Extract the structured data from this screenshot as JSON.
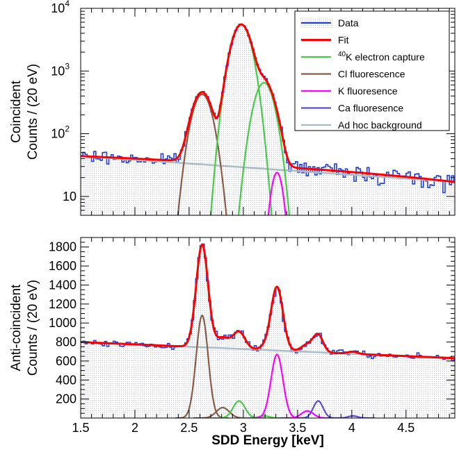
{
  "chart_data": [
    {
      "type": "line",
      "panel": "top",
      "ylabel_line1": "Coincident",
      "ylabel_line2": "Counts / (20 eV)",
      "ylog": true,
      "xlim": [
        1.5,
        4.95
      ],
      "ylim": [
        5,
        10000
      ],
      "yticks": [
        {
          "value": 10,
          "label": "10"
        },
        {
          "value": 100,
          "label": "10",
          "sup": "2"
        },
        {
          "value": 1000,
          "label": "10",
          "sup": "3"
        },
        {
          "value": 10000,
          "label": "10",
          "sup": "4"
        }
      ],
      "grid": false,
      "legend_position": "top-right",
      "legend": [
        {
          "label": "Data",
          "color": "#1f3fd6"
        },
        {
          "label": "Fit",
          "color": "#ff0000"
        },
        {
          "label": "K electron capture",
          "sup": "40",
          "color": "#44cc44"
        },
        {
          "label": "Cl fluorescence",
          "color": "#8b5a44"
        },
        {
          "label": "K fluoresence",
          "color": "#ff00ff"
        },
        {
          "label": "Ca fluoresence",
          "color": "#5a4fd0"
        },
        {
          "label": "Ad hoc background",
          "color": "#a9bcc6"
        }
      ],
      "background": {
        "x": [
          1.5,
          4.95
        ],
        "y": [
          44,
          17
        ],
        "color": "#a9bcc6"
      },
      "peaks": [
        {
          "name": "Cl fluorescence",
          "mu": 2.62,
          "sigma": 0.075,
          "amp": 425,
          "color": "#8b5a44"
        },
        {
          "name": "K electron capture",
          "mu": 2.98,
          "sigma": 0.075,
          "amp": 5500,
          "color": "#44cc44"
        },
        {
          "name": "K electron capture (K-beta)",
          "mu": 3.19,
          "sigma": 0.075,
          "amp": 650,
          "color": "#44cc44"
        },
        {
          "name": "K fluoresence",
          "mu": 3.31,
          "sigma": 0.045,
          "amp": 24,
          "color": "#ff00ff"
        }
      ],
      "fit_color": "#ff0000",
      "data_color": "#1f3fd6"
    },
    {
      "type": "line",
      "panel": "bottom",
      "ylabel_line1": "Anti-coincident",
      "ylabel_line2": "Counts / (20 eV)",
      "ylog": false,
      "xlim": [
        1.5,
        4.95
      ],
      "ylim": [
        0,
        1900
      ],
      "yticks": [
        {
          "value": 200,
          "label": "200"
        },
        {
          "value": 400,
          "label": "400"
        },
        {
          "value": 600,
          "label": "600"
        },
        {
          "value": 800,
          "label": "800"
        },
        {
          "value": 1000,
          "label": "1000"
        },
        {
          "value": 1200,
          "label": "1200"
        },
        {
          "value": 1400,
          "label": "1400"
        },
        {
          "value": 1600,
          "label": "1600"
        },
        {
          "value": 1800,
          "label": "1800"
        }
      ],
      "xlabel": "SDD Energy [keV]",
      "xticks": [
        {
          "value": 1.5,
          "label": "1.5"
        },
        {
          "value": 2,
          "label": "2"
        },
        {
          "value": 2.5,
          "label": "2.5"
        },
        {
          "value": 3,
          "label": "3"
        },
        {
          "value": 3.5,
          "label": "3.5"
        },
        {
          "value": 4,
          "label": "4"
        },
        {
          "value": 4.5,
          "label": "4.5"
        }
      ],
      "grid": false,
      "background": {
        "x": [
          1.5,
          4.95
        ],
        "y": [
          800,
          630
        ],
        "color": "#a9bcc6"
      },
      "peaks": [
        {
          "name": "Cl fluorescence",
          "mu": 2.62,
          "sigma": 0.055,
          "amp": 1080,
          "color": "#8b5a44"
        },
        {
          "name": "Cl fluorescence (K-beta)",
          "mu": 2.81,
          "sigma": 0.06,
          "amp": 110,
          "color": "#8b5a44"
        },
        {
          "name": "K electron capture",
          "mu": 2.96,
          "sigma": 0.055,
          "amp": 180,
          "color": "#44cc44"
        },
        {
          "name": "K electron capture (K-beta)",
          "mu": 3.19,
          "sigma": 0.05,
          "amp": 22,
          "color": "#44cc44"
        },
        {
          "name": "K fluoresence",
          "mu": 3.31,
          "sigma": 0.055,
          "amp": 670,
          "color": "#ff00ff"
        },
        {
          "name": "K fluoresence (K-beta)",
          "mu": 3.59,
          "sigma": 0.055,
          "amp": 75,
          "color": "#ff00ff"
        },
        {
          "name": "Ca fluoresence",
          "mu": 3.69,
          "sigma": 0.045,
          "amp": 180,
          "color": "#5a4fd0"
        },
        {
          "name": "Ca fluoresence (K-beta)",
          "mu": 4.01,
          "sigma": 0.045,
          "amp": 22,
          "color": "#5a4fd0"
        }
      ],
      "fit_color": "#ff0000",
      "data_color": "#1f3fd6"
    }
  ]
}
